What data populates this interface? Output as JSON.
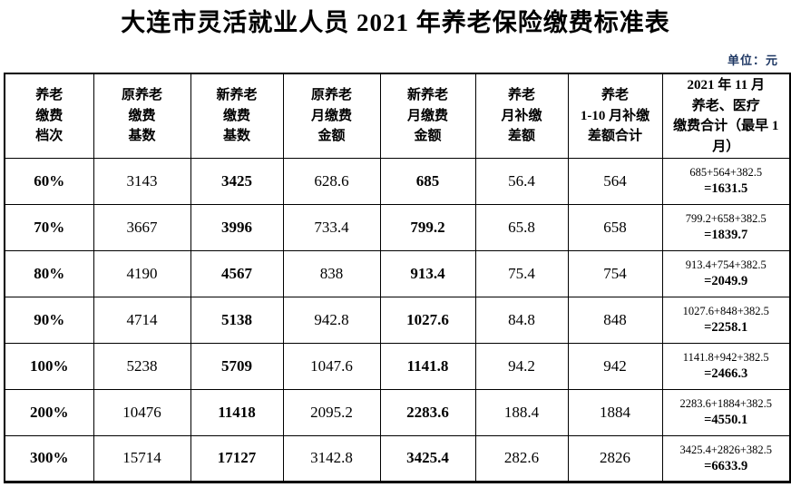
{
  "page": {
    "title": "大连市灵活就业人员 2021 年养老保险缴费标准表",
    "unit_label": "单位：元"
  },
  "table": {
    "headers": [
      "养老\n缴费\n档次",
      "原养老\n缴费\n基数",
      "新养老\n缴费\n基数",
      "原养老\n月缴费\n金额",
      "新养老\n月缴费\n金额",
      "养老\n月补缴\n差额",
      "养老\n1-10 月补缴\n差额合计",
      "2021 年 11 月\n养老、医疗\n缴费合计（最早 1\n月）"
    ],
    "rows": [
      {
        "tier": "60%",
        "old_base": "3143",
        "new_base": "3425",
        "old_monthly": "628.6",
        "new_monthly": "685",
        "monthly_diff": "56.4",
        "diff_total": "564",
        "expr": "685+564+382.5",
        "total": "=1631.5"
      },
      {
        "tier": "70%",
        "old_base": "3667",
        "new_base": "3996",
        "old_monthly": "733.4",
        "new_monthly": "799.2",
        "monthly_diff": "65.8",
        "diff_total": "658",
        "expr": "799.2+658+382.5",
        "total": "=1839.7"
      },
      {
        "tier": "80%",
        "old_base": "4190",
        "new_base": "4567",
        "old_monthly": "838",
        "new_monthly": "913.4",
        "monthly_diff": "75.4",
        "diff_total": "754",
        "expr": "913.4+754+382.5",
        "total": "=2049.9"
      },
      {
        "tier": "90%",
        "old_base": "4714",
        "new_base": "5138",
        "old_monthly": "942.8",
        "new_monthly": "1027.6",
        "monthly_diff": "84.8",
        "diff_total": "848",
        "expr": "1027.6+848+382.5",
        "total": "=2258.1"
      },
      {
        "tier": "100%",
        "old_base": "5238",
        "new_base": "5709",
        "old_monthly": "1047.6",
        "new_monthly": "1141.8",
        "monthly_diff": "94.2",
        "diff_total": "942",
        "expr": "1141.8+942+382.5",
        "total": "=2466.3"
      },
      {
        "tier": "200%",
        "old_base": "10476",
        "new_base": "11418",
        "old_monthly": "2095.2",
        "new_monthly": "2283.6",
        "monthly_diff": "188.4",
        "diff_total": "1884",
        "expr": "2283.6+1884+382.5",
        "total": "=4550.1"
      },
      {
        "tier": "300%",
        "old_base": "15714",
        "new_base": "17127",
        "old_monthly": "3142.8",
        "new_monthly": "3425.4",
        "monthly_diff": "282.6",
        "diff_total": "2826",
        "expr": "3425.4+2826+382.5",
        "total": "=6633.9"
      }
    ]
  }
}
